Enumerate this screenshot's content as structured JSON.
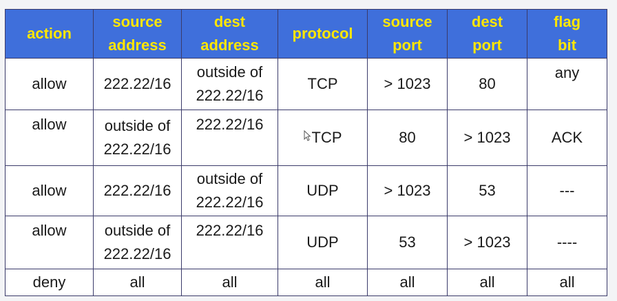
{
  "table": {
    "headers": [
      "action",
      "source\naddress",
      "dest\naddress",
      "protocol",
      "source\nport",
      "dest\nport",
      "flag\nbit"
    ],
    "rows": [
      [
        "allow",
        "222.22/16",
        "outside of\n222.22/16",
        "TCP",
        "> 1023",
        "80",
        "any"
      ],
      [
        "allow",
        "outside of\n222.22/16",
        "222.22/16",
        "TCP",
        "80",
        "> 1023",
        "ACK"
      ],
      [
        "allow",
        "222.22/16",
        "outside of\n222.22/16",
        "UDP",
        "> 1023",
        "53",
        "---"
      ],
      [
        "allow",
        "outside of\n222.22/16",
        "222.22/16",
        "UDP",
        "53",
        "> 1023",
        "----"
      ],
      [
        "deny",
        "all",
        "all",
        "all",
        "all",
        "all",
        "all"
      ]
    ]
  },
  "colors": {
    "header_bg": "#3f6fdb",
    "header_text": "#ffe600",
    "border": "#3a3a6a"
  },
  "icons": {
    "cursor": "mouse-pointer-icon"
  }
}
